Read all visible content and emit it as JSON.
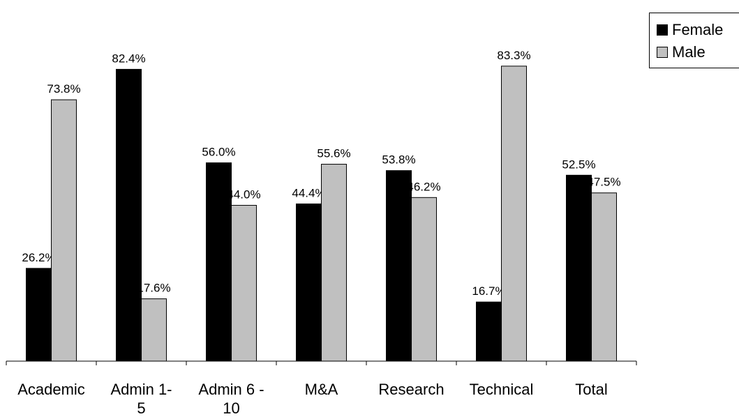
{
  "chart_data": {
    "type": "bar",
    "categories": [
      [
        "Academic"
      ],
      [
        "Admin 1-",
        "5"
      ],
      [
        "Admin 6 -",
        "10"
      ],
      [
        "M&A"
      ],
      [
        "Research"
      ],
      [
        "Technical"
      ],
      [
        "Total"
      ]
    ],
    "series": [
      {
        "name": "Female",
        "color": "#000000",
        "values": [
          26.2,
          82.4,
          56.0,
          44.4,
          53.8,
          16.7,
          52.5
        ],
        "labels": [
          "26.2%",
          "82.4%",
          "56.0%",
          "44.4%",
          "53.8%",
          "16.7%",
          "52.5%"
        ]
      },
      {
        "name": "Male",
        "color": "#c0c0c0",
        "values": [
          73.8,
          17.6,
          44.0,
          55.6,
          46.2,
          83.3,
          47.5
        ],
        "labels": [
          "73.8%",
          "17.6%",
          "44.0%",
          "55.6%",
          "46.2%",
          "83.3%",
          "47.5%"
        ]
      }
    ],
    "ylim": [
      0,
      100
    ],
    "grid": false,
    "legend_position": "top-right"
  }
}
